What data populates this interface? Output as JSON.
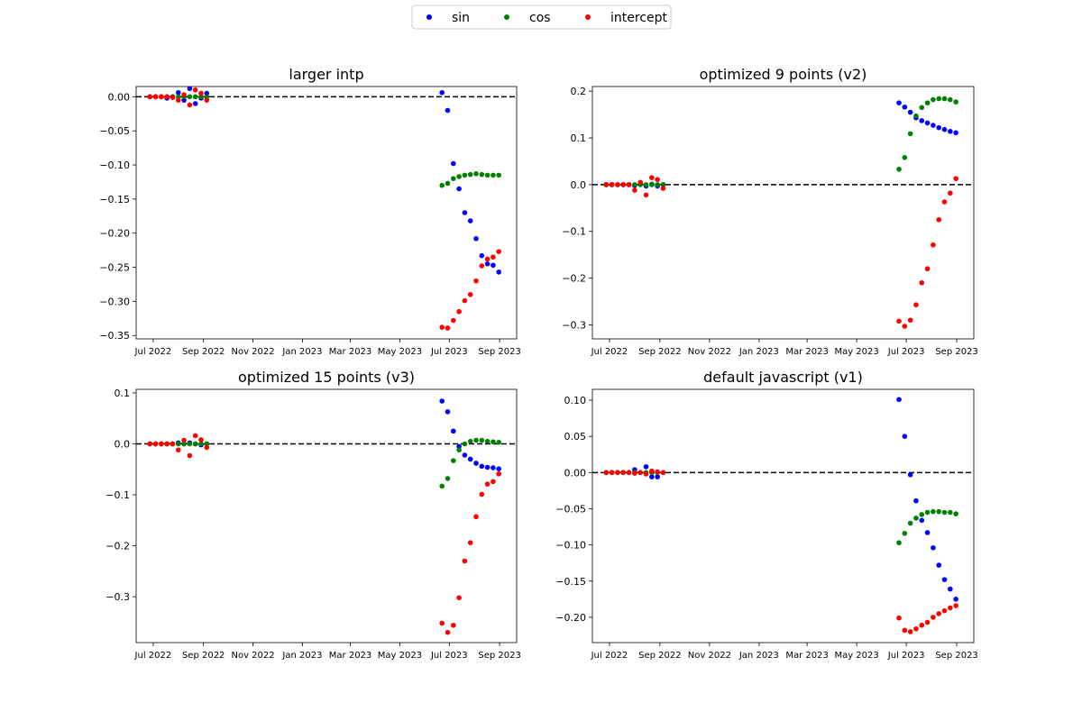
{
  "figure": {
    "legend": {
      "placement": "top-center",
      "entries": [
        {
          "label": "sin",
          "color": "#0000ff"
        },
        {
          "label": "cos",
          "color": "#008000"
        },
        {
          "label": "intercept",
          "color": "#ff0000"
        }
      ]
    }
  },
  "chart_data": [
    {
      "type": "scatter",
      "title": "larger intp",
      "x_type": "date",
      "xlim": [
        "2022-06-10",
        "2023-09-22"
      ],
      "x_ticks": [
        "2022-07-01",
        "2022-09-01",
        "2022-11-01",
        "2023-01-01",
        "2023-03-01",
        "2023-05-01",
        "2023-07-01",
        "2023-09-01"
      ],
      "x_tick_labels": [
        "Jul 2022",
        "Sep 2022",
        "Nov 2022",
        "Jan 2023",
        "Mar 2023",
        "May 2023",
        "Jul 2023",
        "Sep 2023"
      ],
      "ylim": [
        -0.355,
        0.015
      ],
      "y_ticks": [
        0.0,
        -0.05,
        -0.1,
        -0.15,
        -0.2,
        -0.25,
        -0.3,
        -0.35
      ],
      "y_tick_labels": [
        "0.00",
        "−0.05",
        "−0.10",
        "−0.15",
        "−0.20",
        "−0.25",
        "−0.30",
        "−0.35"
      ],
      "hline": 0,
      "x": [
        "2022-06-27",
        "2022-07-04",
        "2022-07-11",
        "2022-07-18",
        "2022-07-25",
        "2022-08-01",
        "2022-08-08",
        "2022-08-15",
        "2022-08-22",
        "2022-08-29",
        "2022-09-05",
        "2023-06-22",
        "2023-06-29",
        "2023-07-06",
        "2023-07-13",
        "2023-07-20",
        "2023-07-27",
        "2023-08-03",
        "2023-08-10",
        "2023-08-17",
        "2023-08-24",
        "2023-08-31"
      ],
      "series": [
        {
          "name": "sin",
          "color": "#0000ff",
          "values": [
            0.0,
            0.0,
            0.0,
            -0.002,
            0.0,
            0.006,
            -0.005,
            0.012,
            -0.01,
            -0.002,
            0.005,
            0.006,
            -0.02,
            -0.098,
            -0.135,
            -0.17,
            -0.182,
            -0.208,
            -0.233,
            -0.245,
            -0.247,
            -0.257
          ]
        },
        {
          "name": "cos",
          "color": "#008000",
          "values": [
            0.0,
            0.0,
            0.0,
            0.0,
            0.0,
            0.0,
            0.0,
            0.0,
            0.0,
            0.0,
            0.0,
            -0.13,
            -0.127,
            -0.12,
            -0.117,
            -0.115,
            -0.114,
            -0.113,
            -0.114,
            -0.115,
            -0.115,
            -0.115
          ]
        },
        {
          "name": "intercept",
          "color": "#ff0000",
          "values": [
            0.0,
            0.0,
            0.0,
            0.0,
            -0.001,
            -0.005,
            0.003,
            -0.012,
            0.01,
            0.005,
            -0.005,
            -0.338,
            -0.339,
            -0.328,
            -0.315,
            -0.299,
            -0.29,
            -0.27,
            -0.248,
            -0.238,
            -0.235,
            -0.227
          ]
        }
      ]
    },
    {
      "type": "scatter",
      "title": "optimized 9 points (v2)",
      "x_type": "date",
      "xlim": [
        "2022-06-10",
        "2023-09-22"
      ],
      "x_ticks": [
        "2022-07-01",
        "2022-09-01",
        "2022-11-01",
        "2023-01-01",
        "2023-03-01",
        "2023-05-01",
        "2023-07-01",
        "2023-09-01"
      ],
      "x_tick_labels": [
        "Jul 2022",
        "Sep 2022",
        "Nov 2022",
        "Jan 2023",
        "Mar 2023",
        "May 2023",
        "Jul 2023",
        "Sep 2023"
      ],
      "ylim": [
        -0.33,
        0.21
      ],
      "y_ticks": [
        0.2,
        0.1,
        0.0,
        -0.1,
        -0.2,
        -0.3
      ],
      "y_tick_labels": [
        "0.2",
        "0.1",
        "0.0",
        "−0.1",
        "−0.2",
        "−0.3"
      ],
      "hline": 0,
      "x": [
        "2022-06-27",
        "2022-07-04",
        "2022-07-11",
        "2022-07-18",
        "2022-07-25",
        "2022-08-01",
        "2022-08-08",
        "2022-08-15",
        "2022-08-22",
        "2022-08-29",
        "2022-09-05",
        "2023-06-22",
        "2023-06-29",
        "2023-07-06",
        "2023-07-13",
        "2023-07-20",
        "2023-07-27",
        "2023-08-03",
        "2023-08-10",
        "2023-08-17",
        "2023-08-24",
        "2023-08-31"
      ],
      "series": [
        {
          "name": "sin",
          "color": "#0000ff",
          "values": [
            0.0,
            0.0,
            0.0,
            0.0,
            0.0,
            -0.002,
            0.004,
            -0.003,
            0.001,
            -0.003,
            0.0,
            0.175,
            0.166,
            0.155,
            0.143,
            0.137,
            0.132,
            0.127,
            0.122,
            0.118,
            0.114,
            0.111
          ]
        },
        {
          "name": "cos",
          "color": "#008000",
          "values": [
            0.0,
            0.0,
            0.0,
            0.0,
            0.0,
            0.0,
            0.0,
            0.0,
            0.0,
            0.0,
            0.0,
            0.033,
            0.058,
            0.109,
            0.147,
            0.165,
            0.175,
            0.182,
            0.184,
            0.184,
            0.182,
            0.177
          ]
        },
        {
          "name": "intercept",
          "color": "#ff0000",
          "values": [
            0.0,
            0.0,
            0.0,
            0.0,
            0.0,
            -0.012,
            0.005,
            -0.022,
            0.015,
            0.011,
            -0.008,
            -0.292,
            -0.303,
            -0.29,
            -0.257,
            -0.21,
            -0.18,
            -0.129,
            -0.075,
            -0.037,
            -0.018,
            0.013
          ]
        }
      ]
    },
    {
      "type": "scatter",
      "title": "optimized 15 points (v3)",
      "x_type": "date",
      "xlim": [
        "2022-06-10",
        "2023-09-22"
      ],
      "x_ticks": [
        "2022-07-01",
        "2022-09-01",
        "2022-11-01",
        "2023-01-01",
        "2023-03-01",
        "2023-05-01",
        "2023-07-01",
        "2023-09-01"
      ],
      "x_tick_labels": [
        "Jul 2022",
        "Sep 2022",
        "Nov 2022",
        "Jan 2023",
        "Mar 2023",
        "May 2023",
        "Jul 2023",
        "Sep 2023"
      ],
      "ylim": [
        -0.39,
        0.107
      ],
      "y_ticks": [
        0.1,
        0.0,
        -0.1,
        -0.2,
        -0.3
      ],
      "y_tick_labels": [
        "0.1",
        "0.0",
        "−0.1",
        "−0.2",
        "−0.3"
      ],
      "hline": 0,
      "x": [
        "2022-06-27",
        "2022-07-04",
        "2022-07-11",
        "2022-07-18",
        "2022-07-25",
        "2022-08-01",
        "2022-08-08",
        "2022-08-15",
        "2022-08-22",
        "2022-08-29",
        "2022-09-05",
        "2023-06-22",
        "2023-06-29",
        "2023-07-06",
        "2023-07-13",
        "2023-07-20",
        "2023-07-27",
        "2023-08-03",
        "2023-08-10",
        "2023-08-17",
        "2023-08-24",
        "2023-08-31"
      ],
      "series": [
        {
          "name": "sin",
          "color": "#0000ff",
          "values": [
            0.0,
            0.0,
            0.0,
            0.0,
            0.0,
            0.002,
            0.0,
            0.002,
            0.0,
            -0.002,
            0.0,
            0.084,
            0.063,
            0.025,
            -0.005,
            -0.022,
            -0.03,
            -0.038,
            -0.044,
            -0.046,
            -0.047,
            -0.049
          ]
        },
        {
          "name": "cos",
          "color": "#008000",
          "values": [
            0.0,
            0.0,
            0.0,
            0.0,
            0.0,
            0.0,
            0.0,
            0.0,
            0.0,
            0.0,
            0.0,
            -0.083,
            -0.068,
            -0.033,
            -0.012,
            0.0,
            0.005,
            0.007,
            0.007,
            0.005,
            0.004,
            0.003
          ]
        },
        {
          "name": "intercept",
          "color": "#ff0000",
          "values": [
            0.0,
            0.0,
            0.0,
            0.0,
            0.0,
            -0.012,
            0.007,
            -0.023,
            0.016,
            0.008,
            -0.007,
            -0.352,
            -0.37,
            -0.356,
            -0.302,
            -0.23,
            -0.194,
            -0.143,
            -0.099,
            -0.079,
            -0.074,
            -0.059
          ]
        }
      ]
    },
    {
      "type": "scatter",
      "title": "default javascript (v1)",
      "x_type": "date",
      "xlim": [
        "2022-06-10",
        "2023-09-22"
      ],
      "x_ticks": [
        "2022-07-01",
        "2022-09-01",
        "2022-11-01",
        "2023-01-01",
        "2023-03-01",
        "2023-05-01",
        "2023-07-01",
        "2023-09-01"
      ],
      "x_tick_labels": [
        "Jul 2022",
        "Sep 2022",
        "Nov 2022",
        "Jan 2023",
        "Mar 2023",
        "May 2023",
        "Jul 2023",
        "Sep 2023"
      ],
      "ylim": [
        -0.235,
        0.115
      ],
      "y_ticks": [
        0.1,
        0.05,
        0.0,
        -0.05,
        -0.1,
        -0.15,
        -0.2
      ],
      "y_tick_labels": [
        "0.10",
        "0.05",
        "0.00",
        "−0.05",
        "−0.10",
        "−0.15",
        "−0.20"
      ],
      "hline": 0,
      "x": [
        "2022-06-27",
        "2022-07-04",
        "2022-07-11",
        "2022-07-18",
        "2022-07-25",
        "2022-08-01",
        "2022-08-08",
        "2022-08-15",
        "2022-08-22",
        "2022-08-29",
        "2022-09-05",
        "2023-06-22",
        "2023-06-29",
        "2023-07-06",
        "2023-07-13",
        "2023-07-20",
        "2023-07-27",
        "2023-08-03",
        "2023-08-10",
        "2023-08-17",
        "2023-08-24",
        "2023-08-31"
      ],
      "series": [
        {
          "name": "sin",
          "color": "#0000ff",
          "values": [
            0.0,
            0.0,
            0.0,
            0.0,
            0.0,
            0.004,
            0.0,
            0.008,
            -0.006,
            -0.006,
            0.0,
            0.101,
            0.05,
            -0.003,
            -0.039,
            -0.066,
            -0.083,
            -0.104,
            -0.128,
            -0.148,
            -0.161,
            -0.175
          ]
        },
        {
          "name": "cos",
          "color": "#008000",
          "values": [
            0.0,
            0.0,
            0.0,
            0.0,
            0.0,
            0.0,
            0.0,
            0.0,
            0.0,
            0.0,
            0.0,
            -0.097,
            -0.084,
            -0.07,
            -0.063,
            -0.058,
            -0.055,
            -0.054,
            -0.054,
            -0.055,
            -0.055,
            -0.057
          ]
        },
        {
          "name": "intercept",
          "color": "#ff0000",
          "values": [
            0.0,
            0.0,
            0.0,
            0.0,
            0.0,
            -0.001,
            0.0,
            -0.002,
            0.002,
            0.001,
            0.0,
            -0.201,
            -0.218,
            -0.22,
            -0.216,
            -0.211,
            -0.207,
            -0.2,
            -0.195,
            -0.191,
            -0.187,
            -0.184
          ]
        }
      ]
    }
  ]
}
